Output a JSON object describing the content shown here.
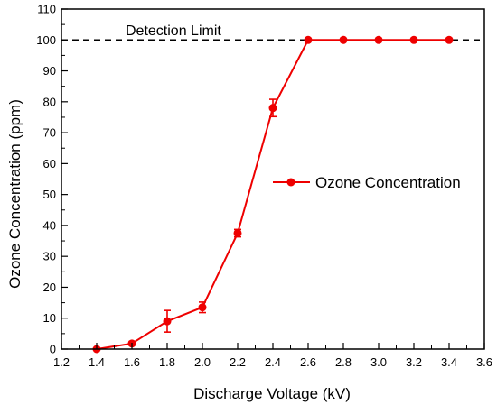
{
  "chart_data": {
    "type": "line",
    "xlabel": "Discharge Voltage (kV)",
    "ylabel": "Ozone Concentration (ppm)",
    "xlim": [
      1.2,
      3.6
    ],
    "ylim": [
      0,
      110
    ],
    "x_ticks": [
      "1.2",
      "1.4",
      "1.6",
      "1.8",
      "2.0",
      "2.2",
      "2.4",
      "2.6",
      "2.8",
      "3.0",
      "3.2",
      "3.4",
      "3.6"
    ],
    "y_ticks": [
      "0",
      "10",
      "20",
      "30",
      "40",
      "50",
      "60",
      "70",
      "80",
      "90",
      "100",
      "110"
    ],
    "grid": false,
    "legend_position": "right",
    "series": [
      {
        "name": "Ozone Concentration",
        "color": "#ee0000",
        "marker": "circle",
        "x": [
          1.4,
          1.6,
          1.8,
          2.0,
          2.2,
          2.4,
          2.6,
          2.8,
          3.0,
          3.2,
          3.4
        ],
        "y": [
          0,
          1.8,
          9,
          13.5,
          37.5,
          78,
          100,
          100,
          100,
          100,
          100
        ],
        "error": [
          0,
          0.5,
          3.5,
          1.7,
          1.2,
          2.8,
          0,
          0,
          0,
          0,
          0
        ]
      }
    ],
    "reference_line": {
      "label": "Detection Limit",
      "y": 100,
      "style": "dashed",
      "color": "#000000"
    }
  }
}
